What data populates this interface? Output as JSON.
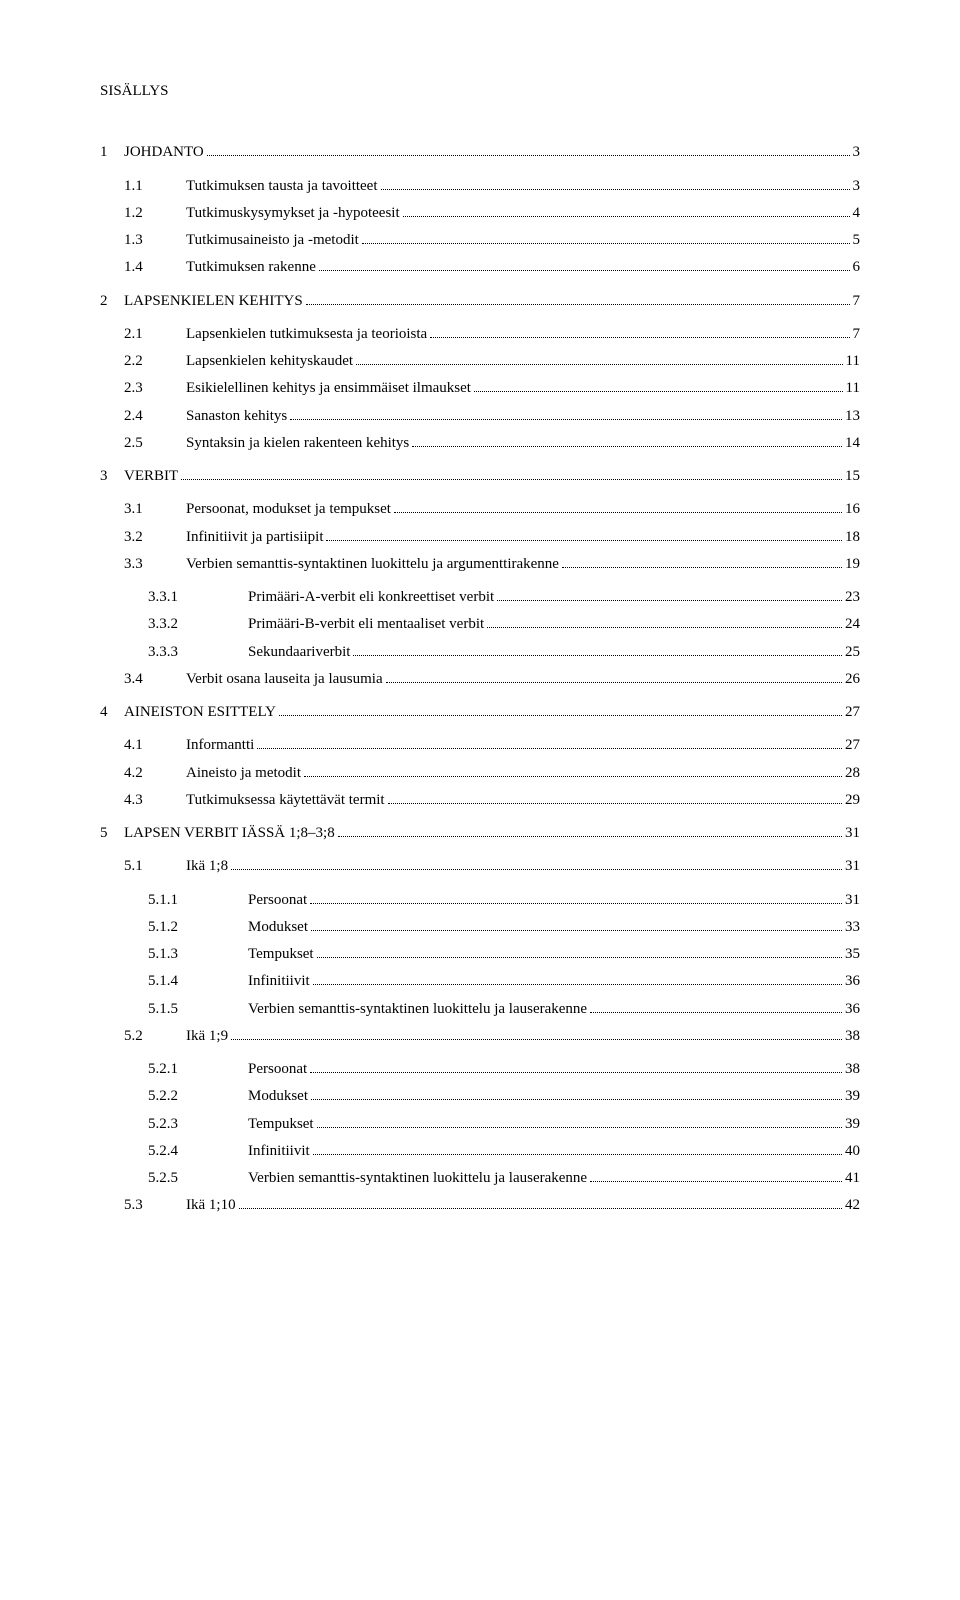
{
  "title": "SISÄLLYS",
  "entries": [
    {
      "level": 0,
      "num": "1",
      "label": "JOHDANTO",
      "page": "3",
      "gap": true
    },
    {
      "level": 1,
      "num": "1.1",
      "label": "Tutkimuksen tausta ja tavoitteet",
      "page": "3"
    },
    {
      "level": 1,
      "num": "1.2",
      "label": "Tutkimuskysymykset ja -hypoteesit",
      "page": "4"
    },
    {
      "level": 1,
      "num": "1.3",
      "label": "Tutkimusaineisto ja -metodit",
      "page": "5"
    },
    {
      "level": 1,
      "num": "1.4",
      "label": "Tutkimuksen rakenne",
      "page": "6",
      "gap": true
    },
    {
      "level": 0,
      "num": "2",
      "label": "LAPSENKIELEN KEHITYS",
      "page": "7",
      "gap": true
    },
    {
      "level": 1,
      "num": "2.1",
      "label": "Lapsenkielen tutkimuksesta ja teorioista",
      "page": "7"
    },
    {
      "level": 1,
      "num": "2.2",
      "label": "Lapsenkielen kehityskaudet",
      "page": "11"
    },
    {
      "level": 1,
      "num": "2.3",
      "label": "Esikielellinen kehitys ja ensimmäiset ilmaukset",
      "page": "11"
    },
    {
      "level": 1,
      "num": "2.4",
      "label": "Sanaston kehitys",
      "page": "13"
    },
    {
      "level": 1,
      "num": "2.5",
      "label": "Syntaksin ja kielen rakenteen kehitys",
      "page": "14",
      "gap": true
    },
    {
      "level": 0,
      "num": "3",
      "label": "VERBIT",
      "page": "15",
      "gap": true
    },
    {
      "level": 1,
      "num": "3.1",
      "label": "Persoonat, modukset ja tempukset",
      "page": "16"
    },
    {
      "level": 1,
      "num": "3.2",
      "label": "Infinitiivit ja partisiipit",
      "page": "18"
    },
    {
      "level": 1,
      "num": "3.3",
      "label": "Verbien semanttis-syntaktinen luokittelu ja argumenttirakenne",
      "page": "19",
      "gap": true
    },
    {
      "level": 2,
      "num": "3.3.1",
      "label": "Primääri-A-verbit eli konkreettiset verbit",
      "page": "23"
    },
    {
      "level": 2,
      "num": "3.3.2",
      "label": "Primääri-B-verbit eli mentaaliset verbit",
      "page": "24"
    },
    {
      "level": 2,
      "num": "3.3.3",
      "label": "Sekundaariverbit",
      "page": "25"
    },
    {
      "level": 1,
      "num": "3.4",
      "label": "Verbit osana lauseita ja lausumia",
      "page": "26",
      "gap": true
    },
    {
      "level": 0,
      "num": "4",
      "label": "AINEISTON ESITTELY",
      "page": "27",
      "gap": true
    },
    {
      "level": 1,
      "num": "4.1",
      "label": "Informantti",
      "page": "27"
    },
    {
      "level": 1,
      "num": "4.2",
      "label": "Aineisto ja metodit",
      "page": "28"
    },
    {
      "level": 1,
      "num": "4.3",
      "label": "Tutkimuksessa käytettävät termit",
      "page": "29",
      "gap": true
    },
    {
      "level": 0,
      "num": "5",
      "label": "LAPSEN VERBIT IÄSSÄ 1;8–3;8",
      "page": "31",
      "gap": true
    },
    {
      "level": 1,
      "num": "5.1",
      "label": "Ikä 1;8",
      "page": "31",
      "gap": true
    },
    {
      "level": 2,
      "num": "5.1.1",
      "label": "Persoonat",
      "page": "31"
    },
    {
      "level": 2,
      "num": "5.1.2",
      "label": "Modukset",
      "page": "33"
    },
    {
      "level": 2,
      "num": "5.1.3",
      "label": "Tempukset",
      "page": "35"
    },
    {
      "level": 2,
      "num": "5.1.4",
      "label": "Infinitiivit",
      "page": "36"
    },
    {
      "level": 2,
      "num": "5.1.5",
      "label": "Verbien semanttis-syntaktinen luokittelu ja lauserakenne",
      "page": "36"
    },
    {
      "level": 1,
      "num": "5.2",
      "label": "Ikä 1;9",
      "page": "38",
      "gap": true
    },
    {
      "level": 2,
      "num": "5.2.1",
      "label": "Persoonat",
      "page": "38"
    },
    {
      "level": 2,
      "num": "5.2.2",
      "label": "Modukset",
      "page": "39"
    },
    {
      "level": 2,
      "num": "5.2.3",
      "label": "Tempukset",
      "page": "39"
    },
    {
      "level": 2,
      "num": "5.2.4",
      "label": "Infinitiivit",
      "page": "40"
    },
    {
      "level": 2,
      "num": "5.2.5",
      "label": "Verbien semanttis-syntaktinen luokittelu ja lauserakenne",
      "page": "41"
    },
    {
      "level": 1,
      "num": "5.3",
      "label": "Ikä 1;10",
      "page": "42"
    }
  ]
}
